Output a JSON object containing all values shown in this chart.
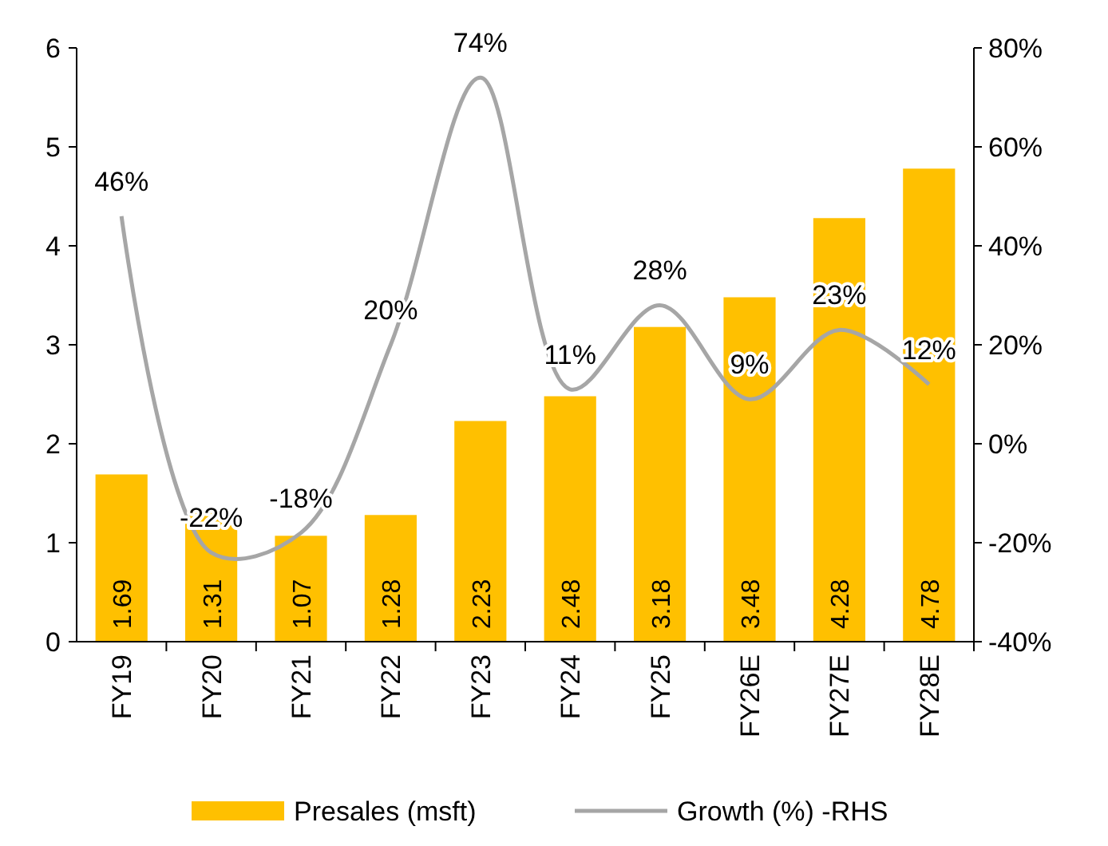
{
  "chart_data": {
    "type": "bar",
    "categories": [
      "FY19",
      "FY20",
      "FY21",
      "FY22",
      "FY23",
      "FY24",
      "FY25",
      "FY26E",
      "FY27E",
      "FY28E"
    ],
    "series": [
      {
        "name": "Presales (msft)",
        "color": "#ffc000",
        "values": [
          1.69,
          1.31,
          1.07,
          1.28,
          2.23,
          2.48,
          3.18,
          3.48,
          4.28,
          4.78
        ],
        "value_labels": [
          "1.69",
          "1.31",
          "1.07",
          "1.28",
          "2.23",
          "2.48",
          "3.18",
          "3.48",
          "4.28",
          "4.78"
        ]
      },
      {
        "name": "Growth (%) -RHS",
        "type": "line",
        "axis": "y2",
        "color": "#a6a6a6",
        "values": [
          46,
          -22,
          -18,
          20,
          74,
          11,
          28,
          9,
          23,
          12
        ],
        "value_labels": [
          "46%",
          "-22%",
          "-18%",
          "20%",
          "74%",
          "11%",
          "28%",
          "9%",
          "23%",
          "12%"
        ]
      }
    ],
    "ylim": [
      0,
      6
    ],
    "yticks": [
      0,
      1,
      2,
      3,
      4,
      5,
      6
    ],
    "y2lim": [
      -40,
      80
    ],
    "y2ticks": [
      {
        "value": -40,
        "label": "-40%"
      },
      {
        "value": -20,
        "label": "-20%"
      },
      {
        "value": 0,
        "label": "0%"
      },
      {
        "value": 20,
        "label": "20%"
      },
      {
        "value": 40,
        "label": "40%"
      },
      {
        "value": 60,
        "label": "60%"
      },
      {
        "value": 80,
        "label": "80%"
      }
    ],
    "legend": "bottom",
    "marker": "none",
    "line_style": "solid"
  }
}
